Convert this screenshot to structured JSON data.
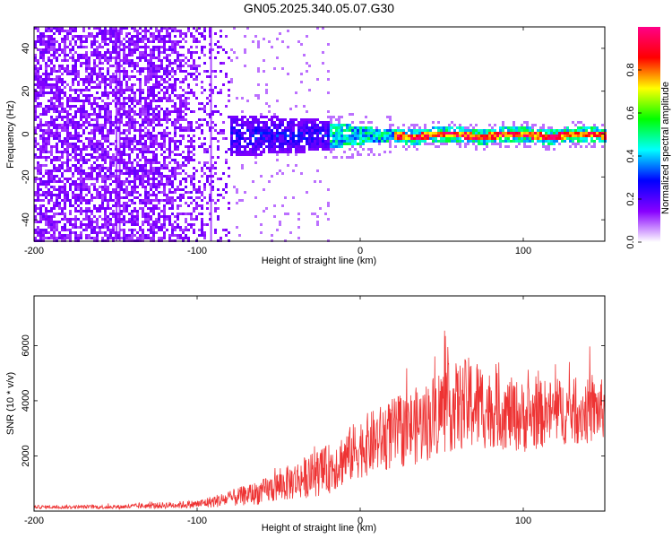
{
  "title": "GN05.2025.340.05.07.G30",
  "chart_data": [
    {
      "type": "heatmap",
      "xlabel": "Height of straight line (km)",
      "ylabel": "Frequency (Hz)",
      "xlim": [
        -200,
        150
      ],
      "ylim": [
        -50,
        50
      ],
      "x_ticks": [
        "-200",
        "-100",
        "0",
        "100"
      ],
      "y_ticks": [
        "-40",
        "-20",
        "0",
        "20",
        "40"
      ],
      "colorbar": {
        "label": "Normalized spectral amplitude",
        "range": [
          0,
          1
        ],
        "ticks": [
          "0.0",
          "0.2",
          "0.4",
          "0.6",
          "0.8"
        ],
        "colormap": [
          "#ffffff",
          "#8800ff",
          "#0000ff",
          "#00ffff",
          "#00ff00",
          "#ffff00",
          "#ff0000",
          "#ff0088"
        ]
      },
      "description_regions": [
        {
          "x_range": [
            -200,
            -80
          ],
          "freq_range": [
            -50,
            50
          ],
          "amplitude": 0.12
        },
        {
          "x_range": [
            -80,
            -20
          ],
          "freq_range": [
            -12,
            12
          ],
          "amplitude": 0.25
        },
        {
          "x_range": [
            -20,
            20
          ],
          "freq_range": [
            -6,
            6
          ],
          "amplitude": 0.45
        },
        {
          "x_range": [
            20,
            150
          ],
          "freq_range": [
            -2,
            2
          ],
          "amplitude": 0.95
        }
      ]
    },
    {
      "type": "line",
      "xlabel": "Height of straight line (km)",
      "ylabel": "SNR (10 * v/v)",
      "xlim": [
        -200,
        150
      ],
      "ylim": [
        0,
        7800
      ],
      "x_ticks": [
        "-200",
        "-100",
        "0",
        "100"
      ],
      "y_ticks": [
        "2000",
        "4000",
        "6000"
      ],
      "color": "#ee3333",
      "envelope": {
        "x": [
          -200,
          -150,
          -100,
          -80,
          -60,
          -40,
          -20,
          0,
          20,
          40,
          50,
          60,
          70,
          80,
          100,
          120,
          140,
          150
        ],
        "y_mean": [
          150,
          150,
          250,
          450,
          700,
          1100,
          1500,
          2300,
          2800,
          3200,
          3700,
          3800,
          3900,
          3700,
          3400,
          3600,
          3600,
          3700
        ],
        "y_spread": [
          120,
          150,
          300,
          600,
          900,
          1400,
          1800,
          2200,
          2600,
          2900,
          3300,
          3200,
          3600,
          2800,
          2600,
          2400,
          2400,
          2200
        ]
      }
    }
  ]
}
